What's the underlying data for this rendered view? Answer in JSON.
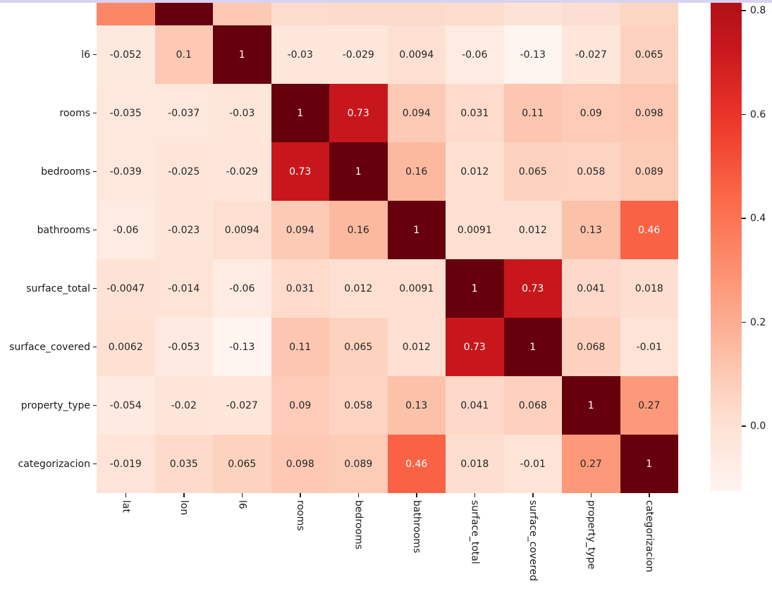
{
  "figure": {
    "background": "#ffffff",
    "top_strip_color": "#d9d2f0",
    "tick_color": "#1a1a1a",
    "label_color": "#1a1a1a",
    "annot_dark_color": "#262626",
    "annot_light_color": "#ffffff"
  },
  "chart_data": {
    "type": "heatmap",
    "title": "",
    "xlabel": "",
    "ylabel": "",
    "colormap": "Reds",
    "colormap_anchors": [
      "#fff5f0",
      "#fee0d2",
      "#fcbba1",
      "#fc9272",
      "#fb6a4a",
      "#ef3b2c",
      "#cb181d",
      "#a50f15",
      "#67000d"
    ],
    "vmin": -0.13,
    "vmax": 1.0,
    "grid": false,
    "columns": [
      "lat",
      "lon",
      "l6",
      "rooms",
      "bedrooms",
      "bathrooms",
      "surface_total",
      "surface_covered",
      "property_type",
      "categorizacion"
    ],
    "rows": [
      {
        "label": "l6",
        "values": [
          "-0.052",
          "0.1",
          "1",
          "-0.03",
          "-0.029",
          "0.0094",
          "-0.06",
          "-0.13",
          "-0.027",
          "0.065"
        ]
      },
      {
        "label": "rooms",
        "values": [
          "-0.035",
          "-0.037",
          "-0.03",
          "1",
          "0.73",
          "0.094",
          "0.031",
          "0.11",
          "0.09",
          "0.098"
        ]
      },
      {
        "label": "bedrooms",
        "values": [
          "-0.039",
          "-0.025",
          "-0.029",
          "0.73",
          "1",
          "0.16",
          "0.012",
          "0.065",
          "0.058",
          "0.089"
        ]
      },
      {
        "label": "bathrooms",
        "values": [
          "-0.06",
          "-0.023",
          "0.0094",
          "0.094",
          "0.16",
          "1",
          "0.0091",
          "0.012",
          "0.13",
          "0.46"
        ]
      },
      {
        "label": "surface_total",
        "values": [
          "-0.0047",
          "-0.014",
          "-0.06",
          "0.031",
          "0.012",
          "0.0091",
          "1",
          "0.73",
          "0.041",
          "0.018"
        ]
      },
      {
        "label": "surface_covered",
        "values": [
          "0.0062",
          "-0.053",
          "-0.13",
          "0.11",
          "0.065",
          "0.012",
          "0.73",
          "1",
          "0.068",
          "-0.01"
        ]
      },
      {
        "label": "property_type",
        "values": [
          "-0.054",
          "-0.02",
          "-0.027",
          "0.09",
          "0.058",
          "0.13",
          "0.041",
          "0.068",
          "1",
          "0.27"
        ]
      },
      {
        "label": "categorizacion",
        "values": [
          "-0.019",
          "0.035",
          "0.065",
          "0.098",
          "0.089",
          "0.46",
          "0.018",
          "-0.01",
          "0.27",
          "1"
        ]
      }
    ],
    "partial_top_row_colors": [
      "#fb8767",
      "#67000d",
      "#fdc9b3",
      "#fcdccc",
      "#fcdbca",
      "#fcdbca",
      "#fcdecf",
      "#fde3d6",
      "#fcdfd2",
      "#fcd7c4"
    ],
    "colorbar": {
      "orientation": "vertical",
      "position": "right",
      "tick_labels": [
        "0.8",
        "0.6",
        "0.4",
        "0.2",
        "0.0"
      ]
    }
  }
}
